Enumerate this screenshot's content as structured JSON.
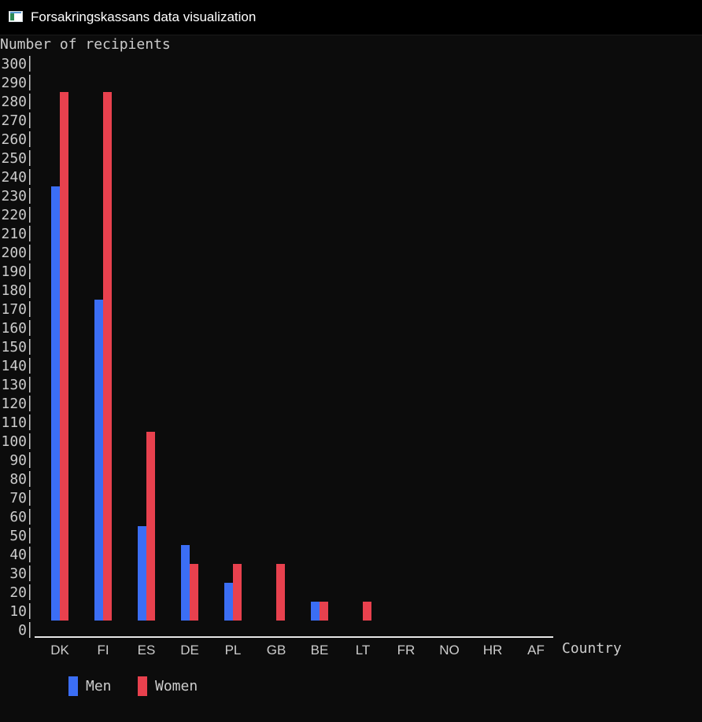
{
  "window": {
    "title": "Forsakringskassans data visualization",
    "icon": "app-window-icon"
  },
  "chart_data": {
    "type": "bar",
    "ylabel": "Number of recipients",
    "xlabel": "Country",
    "ylim": [
      0,
      300
    ],
    "ytick_step": 10,
    "categories": [
      "DK",
      "FI",
      "ES",
      "DE",
      "PL",
      "GB",
      "BE",
      "LT",
      "FR",
      "NO",
      "HR",
      "AF"
    ],
    "series": [
      {
        "name": "Men",
        "color": "#3b6ef5",
        "values": [
          230,
          170,
          50,
          40,
          20,
          0,
          10,
          0,
          0,
          0,
          0,
          0
        ]
      },
      {
        "name": "Women",
        "color": "#e8414e",
        "values": [
          280,
          280,
          100,
          30,
          30,
          30,
          10,
          10,
          0,
          0,
          0,
          0
        ]
      }
    ],
    "legend_position": "bottom-left",
    "grid": false
  }
}
